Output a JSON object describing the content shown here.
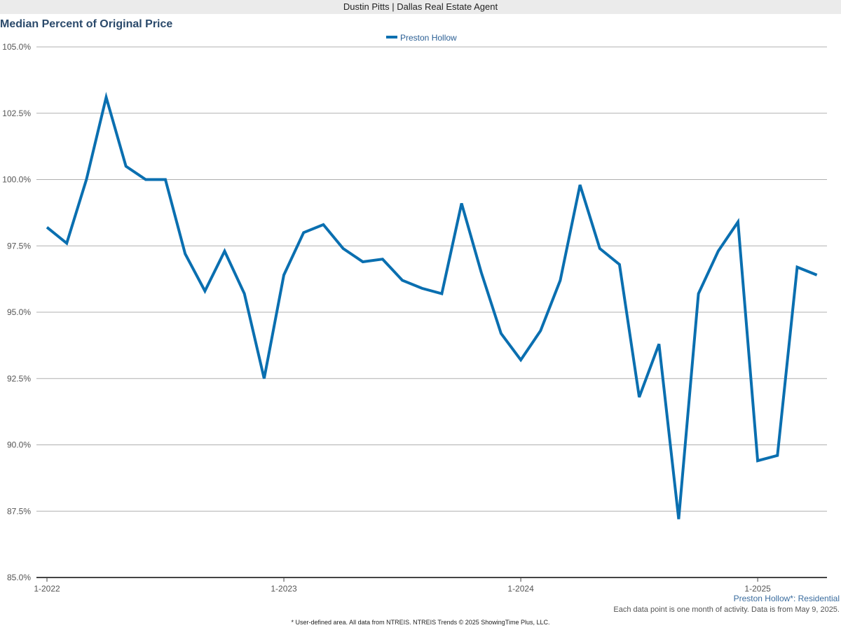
{
  "header": {
    "agent": "Dustin Pitts | Dallas Real Estate Agent"
  },
  "footer": {
    "subtitle": "Preston Hollow*: Residential",
    "data_note": "Each data point is one month of activity. Data is from May 9, 2025.",
    "copyright": "* User-defined area. All data from NTREIS. NTREIS Trends © 2025 ShowingTime Plus, LLC."
  },
  "chart_data": {
    "type": "line",
    "title": "Median Percent of Original Price",
    "xlabel": "",
    "ylabel": "",
    "x": [
      "1-2022",
      "2-2022",
      "3-2022",
      "4-2022",
      "5-2022",
      "6-2022",
      "7-2022",
      "8-2022",
      "9-2022",
      "10-2022",
      "11-2022",
      "12-2022",
      "1-2023",
      "2-2023",
      "3-2023",
      "4-2023",
      "5-2023",
      "6-2023",
      "7-2023",
      "8-2023",
      "9-2023",
      "10-2023",
      "11-2023",
      "12-2023",
      "1-2024",
      "2-2024",
      "3-2024",
      "4-2024",
      "5-2024",
      "6-2024",
      "7-2024",
      "8-2024",
      "9-2024",
      "10-2024",
      "11-2024",
      "12-2024",
      "1-2025",
      "2-2025",
      "3-2025",
      "4-2025"
    ],
    "x_ticks": [
      "1-2022",
      "1-2023",
      "1-2024",
      "1-2025"
    ],
    "ylim": [
      85.0,
      105.0
    ],
    "y_ticks": [
      85.0,
      87.5,
      90.0,
      92.5,
      95.0,
      97.5,
      100.0,
      102.5,
      105.0
    ],
    "y_tick_labels": [
      "85.0%",
      "87.5%",
      "90.0%",
      "92.5%",
      "95.0%",
      "97.5%",
      "100.0%",
      "102.5%",
      "105.0%"
    ],
    "grid": true,
    "legend_position": "top-center",
    "series": [
      {
        "name": "Preston Hollow",
        "color": "#0a6fb0",
        "values": [
          98.2,
          97.6,
          100.0,
          103.1,
          100.5,
          100.0,
          100.0,
          97.2,
          95.8,
          97.3,
          95.7,
          92.5,
          96.4,
          98.0,
          98.3,
          97.4,
          96.9,
          97.0,
          96.2,
          95.9,
          95.7,
          99.1,
          96.5,
          94.2,
          93.2,
          94.3,
          96.2,
          99.8,
          97.4,
          96.8,
          91.8,
          93.8,
          87.2,
          95.7,
          97.3,
          98.4,
          89.4,
          89.6,
          96.7,
          96.4
        ]
      }
    ]
  }
}
